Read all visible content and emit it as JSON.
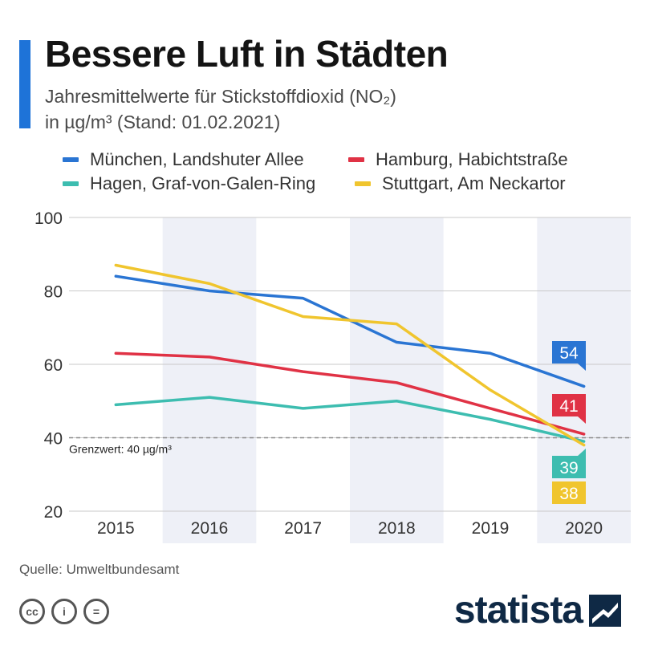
{
  "header": {
    "title": "Bessere Luft in Städten",
    "subtitle_line1": "Jahresmittelwerte für Stickstoffdioxid (NO₂)",
    "subtitle_line2": "in µg/m³ (Stand: 01.02.2021)"
  },
  "colors": {
    "accent": "#1e73d8",
    "muenchen": "#2a75d3",
    "hamburg": "#e03245",
    "hagen": "#3dbdb0",
    "stuttgart": "#f0c52e",
    "band": "#eef0f7",
    "grid": "#c9c9c9",
    "threshold": "#8a8a8a"
  },
  "chart_data": {
    "type": "line",
    "x": [
      "2015",
      "2016",
      "2017",
      "2018",
      "2019",
      "2020"
    ],
    "ylim": [
      20,
      100
    ],
    "yticks": [
      "20",
      "40",
      "60",
      "80",
      "100"
    ],
    "series": [
      {
        "name": "München, Landshuter Allee",
        "color_key": "muenchen",
        "values": [
          84,
          80,
          78,
          66,
          63,
          54
        ]
      },
      {
        "name": "Hamburg, Habichtstraße",
        "color_key": "hamburg",
        "values": [
          63,
          62,
          58,
          55,
          48,
          41
        ]
      },
      {
        "name": "Hagen, Graf-von-Galen-Ring",
        "color_key": "hagen",
        "values": [
          49,
          51,
          48,
          50,
          45,
          39
        ]
      },
      {
        "name": "Stuttgart, Am Neckartor",
        "color_key": "stuttgart",
        "values": [
          87,
          82,
          73,
          71,
          53,
          38
        ]
      }
    ],
    "threshold": {
      "value": 40,
      "label": "Grenzwert: 40 µg/m³"
    },
    "end_labels": [
      "54",
      "41",
      "39",
      "38"
    ],
    "grid": true,
    "legend": "top"
  },
  "footer": {
    "source": "Quelle: Umweltbundesamt",
    "brand": "statista",
    "license_icons": [
      "cc-icon",
      "by-icon",
      "nd-icon"
    ],
    "license_glyphs": [
      "cc",
      "i",
      "="
    ]
  }
}
